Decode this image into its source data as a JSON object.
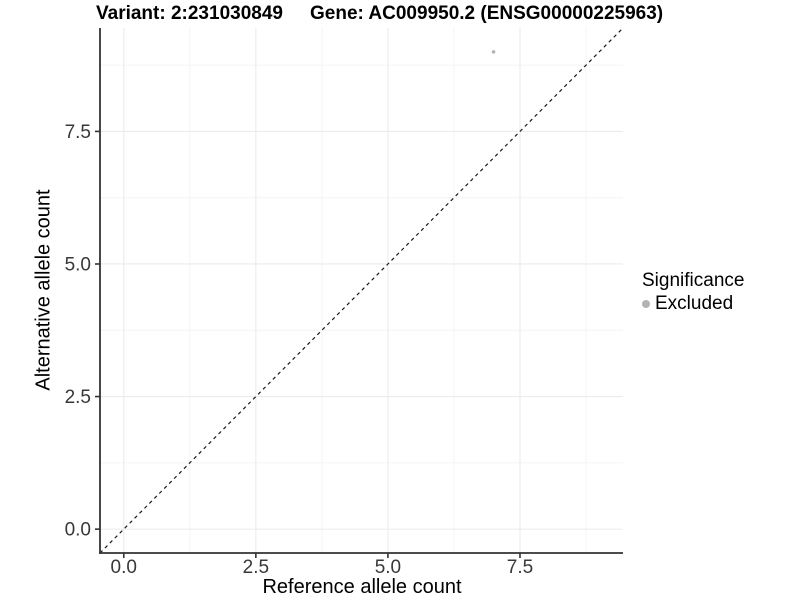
{
  "figure": {
    "title_left": "Variant: 2:231030849",
    "title_right": "Gene: AC009950.2 (ENSG00000225963)"
  },
  "legend": {
    "title": "Significance",
    "items": [
      {
        "label": "Excluded",
        "color": "#b3b3b3"
      }
    ]
  },
  "chart_data": {
    "type": "scatter",
    "title_left": "Variant: 2:231030849",
    "title_right": "Gene: AC009950.2 (ENSG00000225963)",
    "xlabel": "Reference allele count",
    "ylabel": "Alternative allele count",
    "xlim": [
      -0.45,
      9.45
    ],
    "ylim": [
      -0.45,
      9.45
    ],
    "x_ticks": [
      0,
      2.5,
      5,
      7.5
    ],
    "x_tick_labels": [
      "0.0",
      "2.5",
      "5.0",
      "7.5"
    ],
    "y_ticks": [
      0,
      2.5,
      5,
      7.5
    ],
    "y_tick_labels": [
      "0.0",
      "2.5",
      "5.0",
      "7.5"
    ],
    "minor_gridlines": [
      1.25,
      3.75,
      6.25,
      8.75
    ],
    "grid": "major+minor",
    "legend_position": "right",
    "identity_line": {
      "style": "dashed",
      "from": [
        -0.45,
        -0.45
      ],
      "to": [
        9.45,
        9.45
      ],
      "color": "#1a1a1a"
    },
    "series": [
      {
        "name": "Excluded",
        "color": "#b3b3b3",
        "points": [
          {
            "x": 7,
            "y": 9
          }
        ]
      }
    ]
  },
  "colors": {
    "grid_major": "#ebebeb",
    "grid_minor": "#f4f4f4",
    "axis_line": "#333333",
    "tick_text": "#383838",
    "point": "#b3b3b3",
    "dashed_line": "#1a1a1a"
  }
}
